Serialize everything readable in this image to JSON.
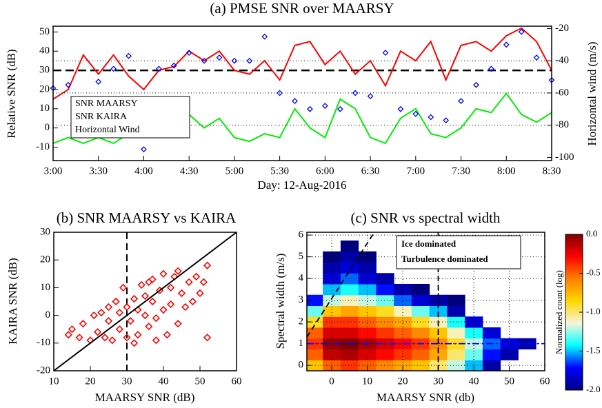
{
  "chart_data": [
    {
      "type": "line",
      "title": "(a) PMSE SNR over MAARSY",
      "xlabel": "Day: 12-Aug-2016",
      "ylabel": "Relative SNR (dB)",
      "y2label": "Horizontal wind (m/s)",
      "x": [
        3,
        3.1667,
        3.3333,
        3.5,
        3.6667,
        3.8333,
        4,
        4.1667,
        4.3333,
        4.5,
        4.6667,
        4.8333,
        5,
        5.1667,
        5.3333,
        5.5,
        5.6667,
        5.8333,
        6,
        6.1667,
        6.3333,
        6.5,
        6.6667,
        6.8333,
        7,
        7.1667,
        7.3333,
        7.5,
        7.6667,
        7.8333,
        8,
        8.1667,
        8.3333,
        8.5
      ],
      "xlim": [
        3,
        8.5
      ],
      "xticks": [
        {
          "value": 3,
          "label": "3:00"
        },
        {
          "value": 3.5,
          "label": "3:30"
        },
        {
          "value": 4,
          "label": "4:00"
        },
        {
          "value": 4.5,
          "label": "4:30"
        },
        {
          "value": 5,
          "label": "5:00"
        },
        {
          "value": 5.5,
          "label": "5:30"
        },
        {
          "value": 6,
          "label": "6:00"
        },
        {
          "value": 6.5,
          "label": "6:30"
        },
        {
          "value": 7,
          "label": "7:00"
        },
        {
          "value": 7.5,
          "label": "7:30"
        },
        {
          "value": 8,
          "label": "8:00"
        },
        {
          "value": 8.5,
          "label": "8:30"
        }
      ],
      "ylim": [
        -17,
        53
      ],
      "yticks": [
        -10,
        0,
        10,
        20,
        30,
        40,
        50
      ],
      "y2lim": [
        -102,
        -18.5
      ],
      "y2ticks": [
        -100,
        -80,
        -60,
        -40,
        -20
      ],
      "grid": true,
      "hline": 30,
      "legend": "lower left",
      "series": [
        {
          "name": "SNR MAARSY",
          "color": "#ff0000",
          "values": [
            15,
            20,
            38,
            28,
            38,
            27,
            20,
            30,
            32,
            40,
            35,
            40,
            30,
            28,
            35,
            25,
            43,
            45,
            33,
            40,
            28,
            35,
            22,
            40,
            35,
            45,
            25,
            43,
            45,
            40,
            48,
            52,
            45,
            30
          ]
        },
        {
          "name": "SNR KAIRA",
          "color": "#00ee00",
          "values": [
            -8,
            -5,
            -8,
            -5,
            -8,
            -3,
            5,
            3,
            -2,
            7,
            0,
            5,
            -5,
            -7,
            -3,
            -5,
            10,
            0,
            -5,
            15,
            10,
            -5,
            -8,
            5,
            10,
            -3,
            -5,
            0,
            10,
            8,
            18,
            7,
            3,
            8
          ]
        },
        {
          "name": "Horizontal Wind",
          "color": "#0000ff",
          "axis": "y2",
          "marker": "diamond",
          "values": [
            -57,
            -55,
            null,
            -53,
            -45,
            -37,
            -95,
            -45,
            -43,
            -35,
            -40,
            -38,
            -40,
            -40,
            -25,
            -60,
            -65,
            -70,
            -68,
            -70,
            -60,
            -62,
            -35,
            -70,
            -73,
            -75,
            -77,
            -65,
            -55,
            -45,
            -30,
            -22,
            -38,
            -52
          ]
        }
      ]
    },
    {
      "type": "scatter",
      "title": "(b) SNR MAARSY vs KAIRA",
      "xlabel": "MAARSY SNR (dB)",
      "ylabel": "KAIRA SNR (dB)",
      "xlim": [
        10,
        60
      ],
      "xticks": [
        10,
        20,
        30,
        40,
        50,
        60
      ],
      "ylim": [
        -20,
        30
      ],
      "yticks": [
        -20,
        -10,
        0,
        10,
        20,
        30
      ],
      "color": "#ff0000",
      "vline": 30,
      "fit_line": {
        "x": [
          10,
          60
        ],
        "y": [
          -20,
          30
        ]
      },
      "x": [
        14,
        15,
        17,
        18,
        20,
        21,
        22,
        24,
        25,
        25,
        26,
        27,
        28,
        28,
        29,
        30,
        30,
        31,
        32,
        32,
        33,
        34,
        35,
        35,
        36,
        37,
        37,
        38,
        39,
        40,
        40,
        41,
        42,
        42,
        43,
        44,
        45,
        46,
        47,
        48,
        49,
        50,
        51,
        52,
        52,
        23,
        33,
        36,
        44,
        38
      ],
      "y": [
        -7,
        -5,
        -8,
        -3,
        -9,
        0,
        -6,
        -8,
        3,
        -2,
        -9,
        5,
        1,
        -5,
        10,
        -8,
        3,
        -2,
        6,
        -10,
        2,
        11,
        0,
        7,
        -4,
        13,
        5,
        -9,
        9,
        2,
        15,
        -7,
        10,
        4,
        14,
        -3,
        8,
        3,
        12,
        5,
        14,
        8,
        12,
        18,
        -8,
        1,
        -7,
        12,
        16,
        -1
      ]
    },
    {
      "type": "heatmap",
      "title": "(c) SNR vs spectral width",
      "xlabel": "MAARSY SNR (db)",
      "ylabel": "Spectral width (m/s)",
      "xlim": [
        -7,
        60
      ],
      "xticks": [
        0,
        10,
        20,
        30,
        40,
        50,
        60
      ],
      "ylim": [
        -0.25,
        6.13
      ],
      "yticks": [
        0,
        1,
        2,
        3,
        4,
        5,
        6
      ],
      "grid": true,
      "x": [
        -5,
        0,
        5,
        10,
        15,
        20,
        25,
        30,
        35,
        40,
        45,
        50,
        55
      ],
      "y": [
        0,
        0.5,
        1,
        1.5,
        2,
        2.5,
        3,
        3.5,
        4,
        4.5,
        5,
        5.5
      ],
      "z": [
        [
          -0.8,
          -0.5,
          -0.4,
          -0.5,
          -0.6,
          -0.7,
          -0.8,
          -1.0,
          -1.2,
          -1.5,
          -1.9,
          null,
          null
        ],
        [
          -0.5,
          -0.15,
          -0.1,
          -0.2,
          -0.3,
          -0.4,
          -0.5,
          -0.7,
          -1.0,
          -1.3,
          -1.7,
          -1.9,
          null
        ],
        [
          -0.4,
          -0.05,
          0,
          -0.1,
          -0.2,
          -0.3,
          -0.4,
          -0.6,
          -0.9,
          -1.2,
          -1.6,
          -1.8,
          -1.9
        ],
        [
          -0.5,
          -0.2,
          -0.2,
          -0.3,
          -0.4,
          -0.5,
          -0.6,
          -0.8,
          -1.1,
          -1.4,
          -1.8,
          null,
          null
        ],
        [
          -0.9,
          -0.4,
          -0.4,
          -0.5,
          -0.6,
          -0.7,
          -0.9,
          -1.1,
          -1.4,
          -1.8,
          null,
          null,
          null
        ],
        [
          -1.3,
          -0.8,
          -0.7,
          -0.8,
          -0.9,
          -1.1,
          -1.3,
          -1.5,
          -1.9,
          null,
          null,
          null,
          null
        ],
        [
          -1.7,
          -1.2,
          -1.1,
          -1.2,
          -1.3,
          -1.6,
          -1.8,
          -1.9,
          -2.0,
          null,
          null,
          null,
          null
        ],
        [
          null,
          -1.5,
          -1.4,
          -1.5,
          -1.7,
          -1.9,
          -2.0,
          null,
          null,
          null,
          null,
          null,
          null
        ],
        [
          null,
          -1.8,
          -1.6,
          -1.8,
          -1.9,
          null,
          null,
          null,
          null,
          null,
          null,
          null,
          null
        ],
        [
          null,
          -1.9,
          -1.8,
          -1.9,
          null,
          null,
          null,
          null,
          null,
          null,
          null,
          null,
          null
        ],
        [
          null,
          -2.0,
          -1.9,
          -2.0,
          null,
          null,
          null,
          null,
          null,
          null,
          null,
          null,
          null
        ],
        [
          null,
          null,
          -2.0,
          null,
          null,
          null,
          null,
          null,
          null,
          null,
          null,
          null,
          null
        ]
      ],
      "colormap": [
        "#00007f",
        "#0000ff",
        "#00ffff",
        "#f5f5dc",
        "#ffd700",
        "#ff8000",
        "#ff0000",
        "#7f0000"
      ],
      "colorbar": {
        "label": "Normalized count (log)",
        "lim": [
          -2,
          0
        ],
        "ticks": [
          {
            "value": 0,
            "label": "0.0"
          },
          {
            "value": -0.5,
            "label": "-0.5"
          },
          {
            "value": -1,
            "label": "-1.0"
          },
          {
            "value": -1.5,
            "label": "-1.5"
          },
          {
            "value": -2,
            "label": "-2.0"
          }
        ]
      },
      "legend": "upper right",
      "series": [
        {
          "name": "Ice dominated",
          "color": "#0000ff",
          "x": [
            -7,
            60
          ],
          "y": [
            1,
            1
          ]
        },
        {
          "name": "Turbulence dominated",
          "color": "#000000",
          "x": [
            30,
            30,
            null,
            -7,
            12
          ],
          "y": [
            -0.25,
            6.13,
            null,
            1.3,
            6.13
          ]
        }
      ]
    }
  ]
}
